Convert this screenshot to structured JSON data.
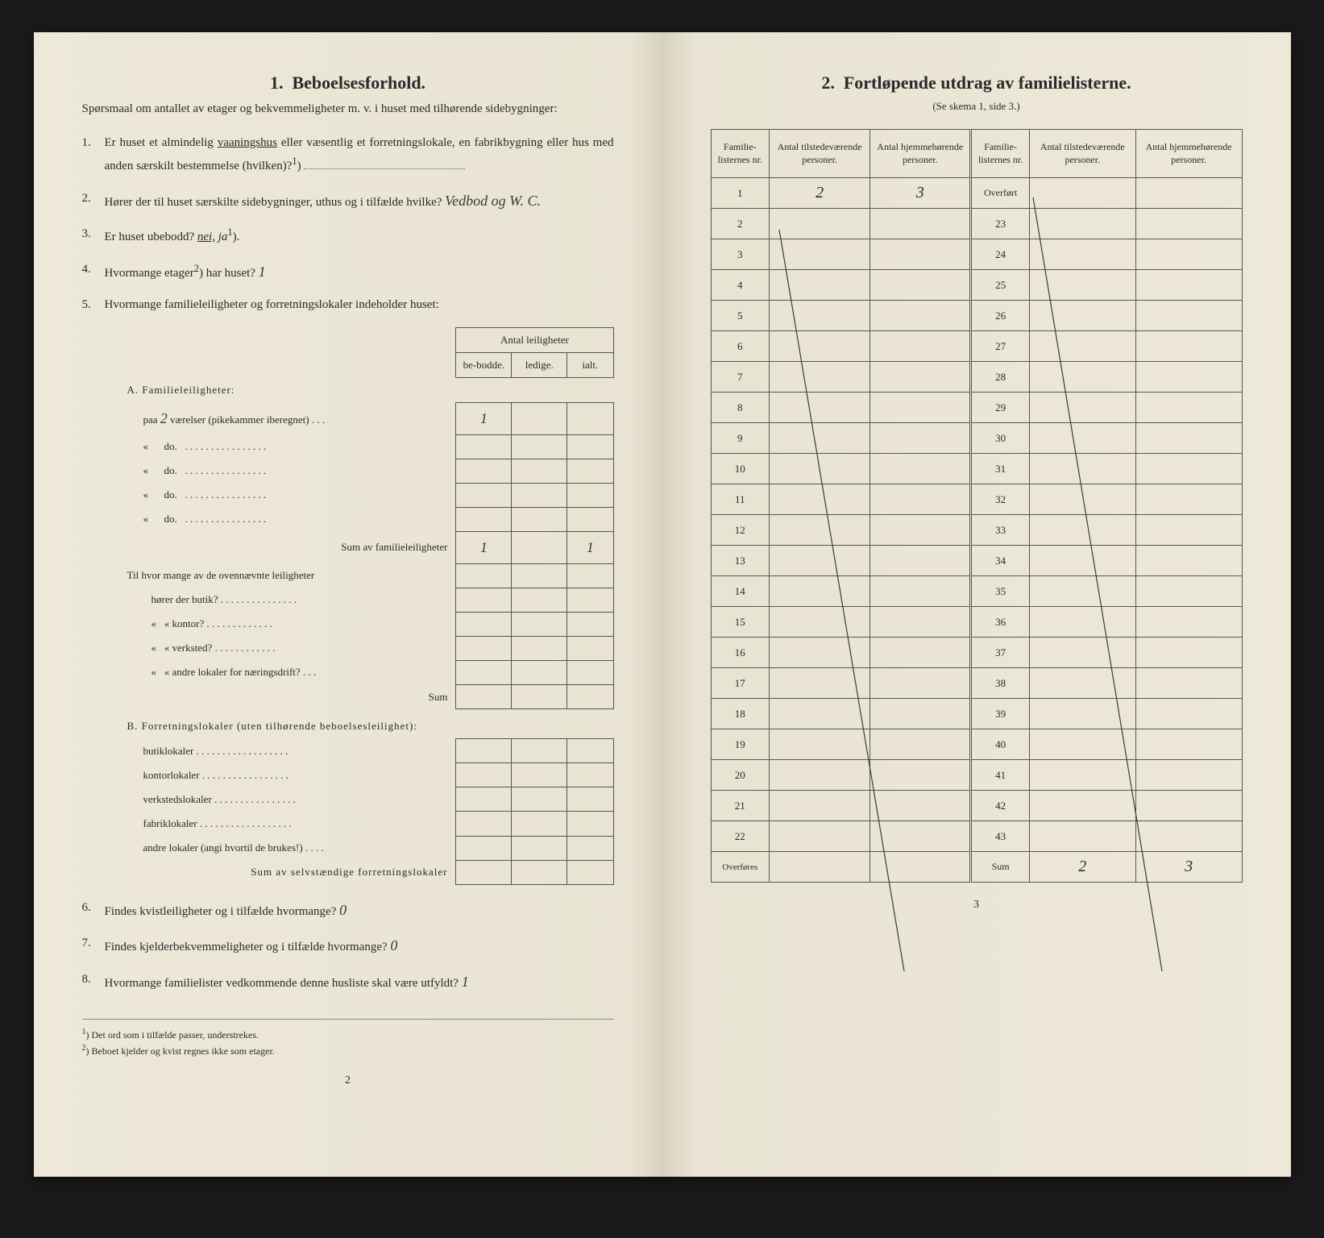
{
  "left": {
    "section_num": "1.",
    "section_title": "Beboelsesforhold.",
    "intro": "Spørsmaal om antallet av etager og bekvemmeligheter m. v. i huset med tilhørende sidebygninger:",
    "q1": {
      "num": "1.",
      "text_a": "Er huset et almindelig ",
      "underlined": "vaaningshus",
      "text_b": " eller væsentlig et forretningslokale, en fabrikbygning eller hus med anden særskilt bestemmelse (hvilken)?",
      "sup": "1"
    },
    "q2": {
      "num": "2.",
      "text": "Hører der til huset særskilte sidebygninger, uthus og i tilfælde hvilke?",
      "answer": "Vedbod og W. C."
    },
    "q3": {
      "num": "3.",
      "text": "Er huset ubebodd?",
      "options_a": "nei,",
      "options_b": "ja",
      "sup": "1"
    },
    "q4": {
      "num": "4.",
      "text_a": "Hvormange etager",
      "sup": "2",
      "text_b": ") har huset?",
      "answer": "1"
    },
    "q5": {
      "num": "5.",
      "text": "Hvormange familieleiligheter og forretningslokaler indeholder huset:"
    },
    "table_header": {
      "span": "Antal leiligheter",
      "c1": "be-bodde.",
      "c2": "ledige.",
      "c3": "ialt."
    },
    "sectionA": {
      "title": "A. Familieleiligheter:",
      "row1_label": "paa",
      "row1_hw": "2",
      "row1_rest": "værelser (pikekammer iberegnet) . . .",
      "row1_val": "1",
      "do": "do.",
      "laquo": "«",
      "sum_label": "Sum av familieleiligheter",
      "sum_v1": "1",
      "sum_v3": "1",
      "sub_intro": "Til hvor mange av de ovennævnte leiligheter",
      "sub_butik": "hører der butik?",
      "sub_kontor": "kontor?",
      "sub_verksted": "verksted?",
      "sub_andre": "andre lokaler for næringsdrift?",
      "sub_sum": "Sum"
    },
    "sectionB": {
      "title": "B. Forretningslokaler (uten tilhørende beboelsesleilighet):",
      "r1": "butiklokaler",
      "r2": "kontorlokaler",
      "r3": "verkstedslokaler",
      "r4": "fabriklokaler",
      "r5": "andre lokaler (angi hvortil de brukes!)",
      "sum": "Sum av selvstændige forretningslokaler"
    },
    "q6": {
      "num": "6.",
      "text": "Findes kvistleiligheter og i tilfælde hvormange?",
      "answer": "0"
    },
    "q7": {
      "num": "7.",
      "text": "Findes kjelderbekvemmeligheter og i tilfælde hvormange?",
      "answer": "0"
    },
    "q8": {
      "num": "8.",
      "text": "Hvormange familielister vedkommende denne husliste skal være utfyldt?",
      "answer": "1"
    },
    "fn1": {
      "sup": "1",
      "text": "Det ord som i tilfælde passer, understrekes."
    },
    "fn2": {
      "sup": "2",
      "text": "Beboet kjelder og kvist regnes ikke som etager."
    },
    "pagenum": "2"
  },
  "right": {
    "section_num": "2.",
    "section_title": "Fortløpende utdrag av familielisterne.",
    "subtitle": "(Se skema 1, side 3.)",
    "headers": {
      "c1": "Familie-listernes nr.",
      "c2": "Antal tilstedeværende personer.",
      "c3": "Antal hjemmehørende personer.",
      "c4": "Familie-listernes nr.",
      "c5": "Antal tilstedeværende personer.",
      "c6": "Antal hjemmehørende personer."
    },
    "row1_nr": "1",
    "row1_v1": "2",
    "row1_v2": "3",
    "overfort": "Overført",
    "left_nrs": [
      "1",
      "2",
      "3",
      "4",
      "5",
      "6",
      "7",
      "8",
      "9",
      "10",
      "11",
      "12",
      "13",
      "14",
      "15",
      "16",
      "17",
      "18",
      "19",
      "20",
      "21",
      "22"
    ],
    "right_nrs": [
      "23",
      "24",
      "25",
      "26",
      "27",
      "28",
      "29",
      "30",
      "31",
      "32",
      "33",
      "34",
      "35",
      "36",
      "37",
      "38",
      "39",
      "40",
      "41",
      "42",
      "43"
    ],
    "overfores": "Overføres",
    "sum_label": "Sum",
    "sum_v1": "2",
    "sum_v2": "3",
    "pagenum": "3"
  },
  "colors": {
    "paper": "#ede8d8",
    "ink": "#2a2a2a",
    "border": "#555555",
    "handwriting": "#3a3a3a"
  }
}
